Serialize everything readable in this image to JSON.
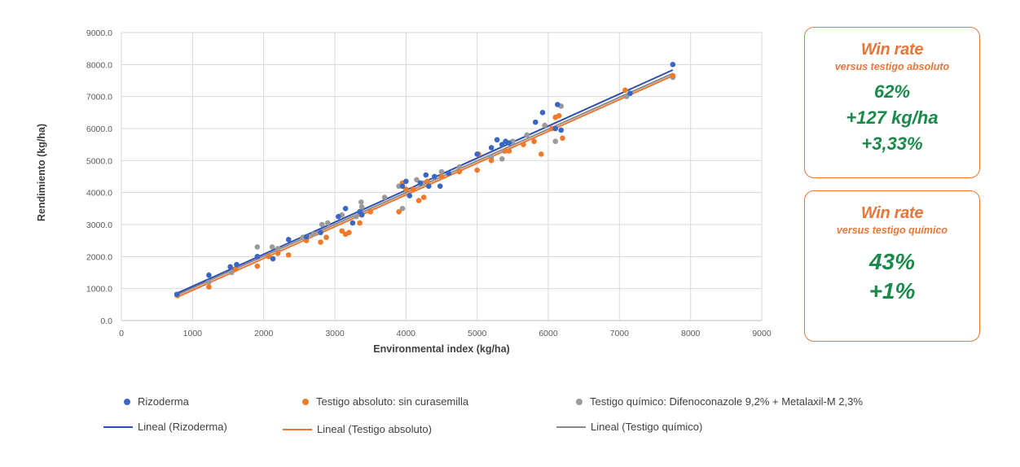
{
  "chart_data": {
    "type": "scatter",
    "xlabel": "Environmental index (kg/ha)",
    "ylabel": "Rendimiento (kg/ha)",
    "xlim": [
      0,
      9000
    ],
    "ylim": [
      0,
      9000
    ],
    "x_ticks": [
      0,
      1000,
      2000,
      3000,
      4000,
      5000,
      6000,
      7000,
      8000,
      9000
    ],
    "y_ticks": [
      0,
      1000,
      2000,
      3000,
      4000,
      5000,
      6000,
      7000,
      8000,
      9000
    ],
    "x_tick_labels": [
      "0",
      "1000",
      "2000",
      "3000",
      "4000",
      "5000",
      "6000",
      "7000",
      "8000",
      "9000"
    ],
    "y_tick_labels": [
      "0.0",
      "1000.0",
      "2000.0",
      "3000.0",
      "4000.0",
      "5000.0",
      "6000.0",
      "7000.0",
      "8000.0",
      "9000.0"
    ],
    "grid": true,
    "colors": {
      "rizoderma": "#3a66c4",
      "absoluto": "#ef7a2a",
      "quimico": "#9a9a9a",
      "fit_rizoderma": "#2e4fb0",
      "fit_absoluto": "#ee7430",
      "fit_quimico": "#8a8a8a"
    },
    "series": [
      {
        "name": "Rizoderma",
        "points": [
          [
            780,
            820
          ],
          [
            1230,
            1420
          ],
          [
            1530,
            1680
          ],
          [
            1620,
            1750
          ],
          [
            1910,
            2000
          ],
          [
            2130,
            1930
          ],
          [
            2350,
            2530
          ],
          [
            2600,
            2620
          ],
          [
            2800,
            2750
          ],
          [
            3050,
            3250
          ],
          [
            3150,
            3500
          ],
          [
            3250,
            3050
          ],
          [
            3350,
            3400
          ],
          [
            3380,
            3300
          ],
          [
            3950,
            4200
          ],
          [
            4000,
            4350
          ],
          [
            4050,
            3900
          ],
          [
            4200,
            4300
          ],
          [
            4280,
            4550
          ],
          [
            4320,
            4200
          ],
          [
            4400,
            4500
          ],
          [
            4480,
            4200
          ],
          [
            4600,
            4600
          ],
          [
            5000,
            5200
          ],
          [
            5200,
            5400
          ],
          [
            5280,
            5650
          ],
          [
            5350,
            5500
          ],
          [
            5400,
            5600
          ],
          [
            5450,
            5550
          ],
          [
            5820,
            6200
          ],
          [
            5920,
            6500
          ],
          [
            6100,
            6000
          ],
          [
            6130,
            6750
          ],
          [
            6180,
            5950
          ],
          [
            7150,
            7100
          ],
          [
            7750,
            8000
          ]
        ]
      },
      {
        "name": "Testigo absoluto: sin curasemilla",
        "points": [
          [
            790,
            780
          ],
          [
            1230,
            1050
          ],
          [
            1600,
            1600
          ],
          [
            1910,
            1700
          ],
          [
            2070,
            2000
          ],
          [
            2200,
            2100
          ],
          [
            2350,
            2050
          ],
          [
            2600,
            2500
          ],
          [
            2800,
            2450
          ],
          [
            2880,
            2600
          ],
          [
            3100,
            2800
          ],
          [
            3150,
            2700
          ],
          [
            3200,
            2750
          ],
          [
            3350,
            3050
          ],
          [
            3500,
            3400
          ],
          [
            3900,
            3400
          ],
          [
            3950,
            4300
          ],
          [
            4000,
            4100
          ],
          [
            4100,
            4100
          ],
          [
            4180,
            3750
          ],
          [
            4250,
            3850
          ],
          [
            4300,
            4350
          ],
          [
            4500,
            4500
          ],
          [
            4750,
            4650
          ],
          [
            5000,
            4700
          ],
          [
            5020,
            5200
          ],
          [
            5200,
            5000
          ],
          [
            5400,
            5300
          ],
          [
            5450,
            5300
          ],
          [
            5650,
            5500
          ],
          [
            5800,
            5600
          ],
          [
            5900,
            5200
          ],
          [
            6050,
            6000
          ],
          [
            6100,
            6350
          ],
          [
            6150,
            6400
          ],
          [
            6200,
            5700
          ],
          [
            7080,
            7200
          ],
          [
            7750,
            7650
          ]
        ]
      },
      {
        "name": "Testigo químico: Difenoconazole 9,2% + Metalaxil-M 2,3%",
        "points": [
          [
            780,
            790
          ],
          [
            1230,
            1200
          ],
          [
            1550,
            1500
          ],
          [
            1910,
            2300
          ],
          [
            2120,
            2300
          ],
          [
            2200,
            2250
          ],
          [
            2550,
            2600
          ],
          [
            2700,
            2700
          ],
          [
            2820,
            3000
          ],
          [
            2900,
            3050
          ],
          [
            3100,
            3300
          ],
          [
            3300,
            3250
          ],
          [
            3370,
            3700
          ],
          [
            3380,
            3550
          ],
          [
            3700,
            3850
          ],
          [
            3900,
            4200
          ],
          [
            3950,
            3500
          ],
          [
            4000,
            4100
          ],
          [
            4150,
            4400
          ],
          [
            4250,
            4300
          ],
          [
            4400,
            4450
          ],
          [
            4500,
            4650
          ],
          [
            4750,
            4800
          ],
          [
            5200,
            5100
          ],
          [
            5350,
            5050
          ],
          [
            5380,
            5300
          ],
          [
            5500,
            5600
          ],
          [
            5700,
            5800
          ],
          [
            5950,
            6100
          ],
          [
            6100,
            5600
          ],
          [
            6180,
            6700
          ],
          [
            7100,
            7000
          ],
          [
            7750,
            7600
          ]
        ]
      }
    ],
    "trendlines": [
      {
        "name": "Lineal (Rizoderma)",
        "start": [
          780,
          850
        ],
        "end": [
          7750,
          7830
        ]
      },
      {
        "name": "Lineal (Testigo absoluto)",
        "start": [
          780,
          730
        ],
        "end": [
          7750,
          7650
        ]
      },
      {
        "name": "Lineal (Testigo químico)",
        "start": [
          780,
          800
        ],
        "end": [
          7750,
          7720
        ]
      }
    ],
    "legend": {
      "position": "bottom",
      "entries": [
        "Rizoderma",
        "Testigo absoluto: sin curasemilla",
        "Testigo químico: Difenoconazole 9,2% + Metalaxil-M 2,3%",
        "Lineal (Rizoderma)",
        "Lineal (Testigo absoluto)",
        "Lineal (Testigo químico)"
      ]
    }
  },
  "cards": {
    "absoluto": {
      "title": "Win rate",
      "subtitle": "versus testigo absoluto",
      "win_rate": "62%",
      "kg": "+127 kg/ha",
      "pct": "+3,33%"
    },
    "quimico": {
      "title": "Win rate",
      "subtitle": "versus testigo químico",
      "win_rate": "43%",
      "pct": "+1%"
    }
  }
}
